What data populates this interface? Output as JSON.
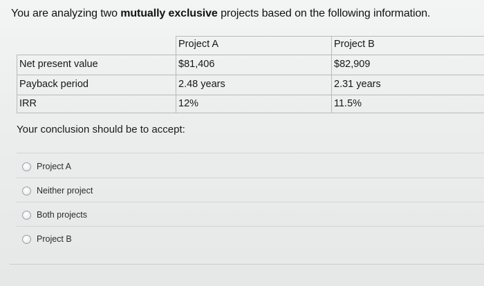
{
  "question": {
    "prefix": "You are analyzing two ",
    "emphasis": "mutually exclusive",
    "suffix": " projects based on the following information."
  },
  "table": {
    "headers": [
      "",
      "Project A",
      "Project B"
    ],
    "rows": [
      {
        "label": "Net present value",
        "a": "$81,406",
        "b": "$82,909"
      },
      {
        "label": "Payback period",
        "a": "2.48 years",
        "b": "2.31 years"
      },
      {
        "label": "IRR",
        "a": "12%",
        "b": "11.5%"
      }
    ]
  },
  "prompt": "Your conclusion should be to accept:",
  "options": [
    {
      "label": "Project A",
      "selected": false
    },
    {
      "label": "Neither project",
      "selected": false
    },
    {
      "label": "Both projects",
      "selected": false
    },
    {
      "label": "Project B",
      "selected": false
    }
  ]
}
